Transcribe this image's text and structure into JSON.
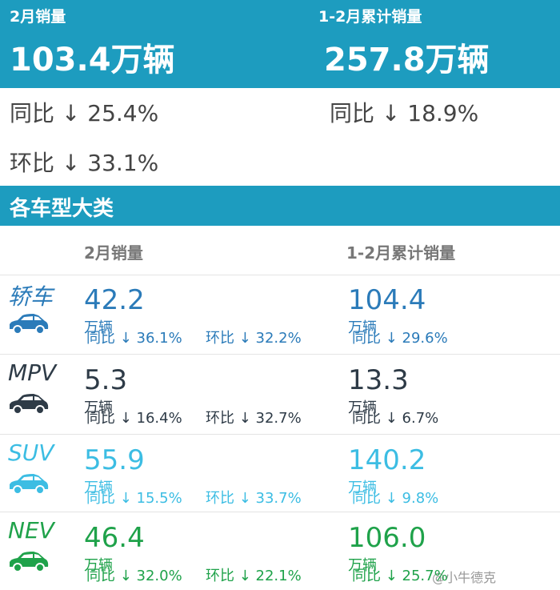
{
  "header": {
    "left": {
      "label": "2月销量",
      "value": "103.4万辆",
      "yoy": "同比 ↓ 25.4%",
      "mom": "环比 ↓ 33.1%"
    },
    "right": {
      "label": "1-2月累计销量",
      "value": "257.8万辆",
      "yoy": "同比 ↓ 18.9%"
    }
  },
  "section": {
    "title": "各车型大类",
    "col1": "2月销量",
    "col2": "1-2月累计销量"
  },
  "rows": [
    {
      "name": "轿车",
      "color": "#2b7bb9",
      "month": {
        "value": "42.2",
        "unit": "万辆",
        "yoy": "同比 ↓ 36.1%",
        "mom": "环比 ↓ 32.2%"
      },
      "total": {
        "value": "104.4",
        "unit": "万辆",
        "yoy": "同比 ↓ 29.6%"
      }
    },
    {
      "name": "MPV",
      "color": "#2e3b47",
      "month": {
        "value": "5.3",
        "unit": "万辆",
        "yoy": "同比 ↓ 16.4%",
        "mom": "环比 ↓ 32.7%"
      },
      "total": {
        "value": "13.3",
        "unit": "万辆",
        "yoy": "同比 ↓ 6.7%"
      }
    },
    {
      "name": "SUV",
      "color": "#3cbde3",
      "month": {
        "value": "55.9",
        "unit": "万辆",
        "yoy": "同比 ↓ 15.5%",
        "mom": "环比 ↓ 33.7%"
      },
      "total": {
        "value": "140.2",
        "unit": "万辆",
        "yoy": "同比 ↓ 9.8%"
      }
    },
    {
      "name": "NEV",
      "color": "#1fa24a",
      "month": {
        "value": "46.4",
        "unit": "万辆",
        "yoy": "同比 ↓ 32.0%",
        "mom": "环比 ↓ 22.1%"
      },
      "total": {
        "value": "106.0",
        "unit": "万辆",
        "yoy": "同比 ↓ 25.7%"
      }
    }
  ],
  "watermark": "@小牛德克"
}
